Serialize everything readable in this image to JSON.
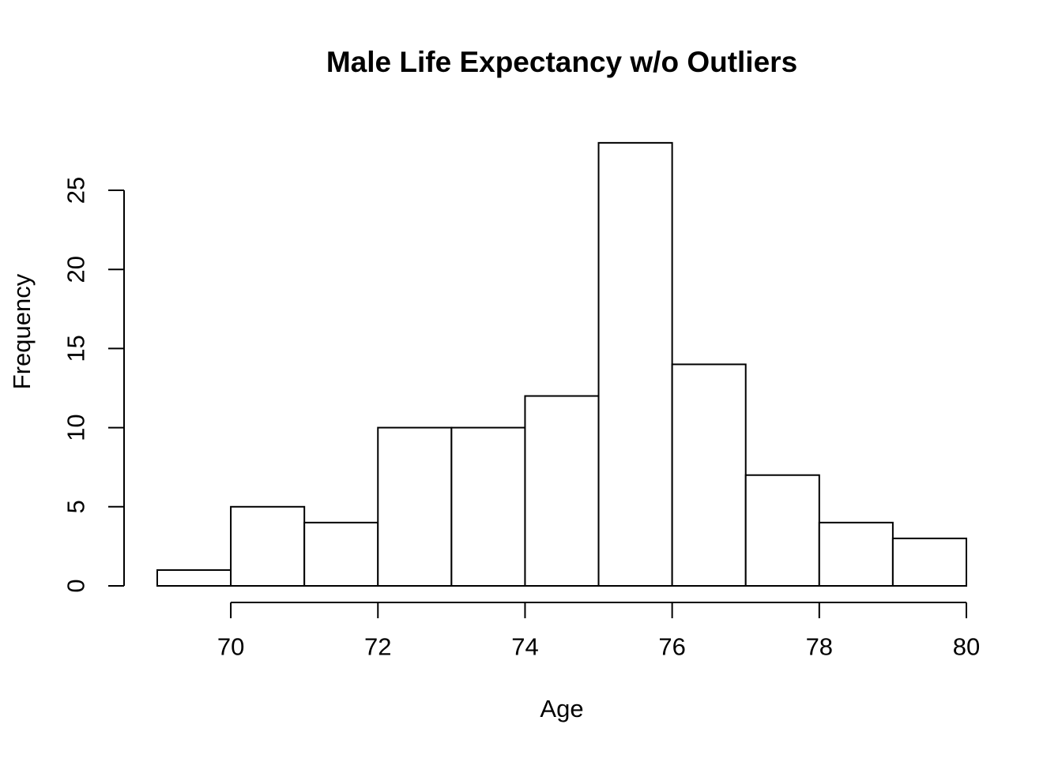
{
  "figure": {
    "background": "#ffffff",
    "text_color": "#000000"
  },
  "chart_data": {
    "type": "bar",
    "subtype": "histogram",
    "title": "Male Life Expectancy w/o Outliers",
    "xlabel": "Age",
    "ylabel": "Frequency",
    "bin_breaks": [
      69,
      70,
      71,
      72,
      73,
      74,
      75,
      76,
      77,
      78,
      79,
      80
    ],
    "counts": [
      1,
      5,
      4,
      10,
      10,
      12,
      28,
      14,
      7,
      4,
      3
    ],
    "x_ticks": [
      70,
      72,
      74,
      76,
      78,
      80
    ],
    "y_ticks": [
      0,
      5,
      10,
      15,
      20,
      25
    ],
    "xlim": [
      69,
      80
    ],
    "ylim": [
      0,
      28
    ],
    "bar_fill": "#ffffff",
    "bar_stroke": "#000000",
    "axis_color": "#000000",
    "grid": false,
    "legend": null
  }
}
